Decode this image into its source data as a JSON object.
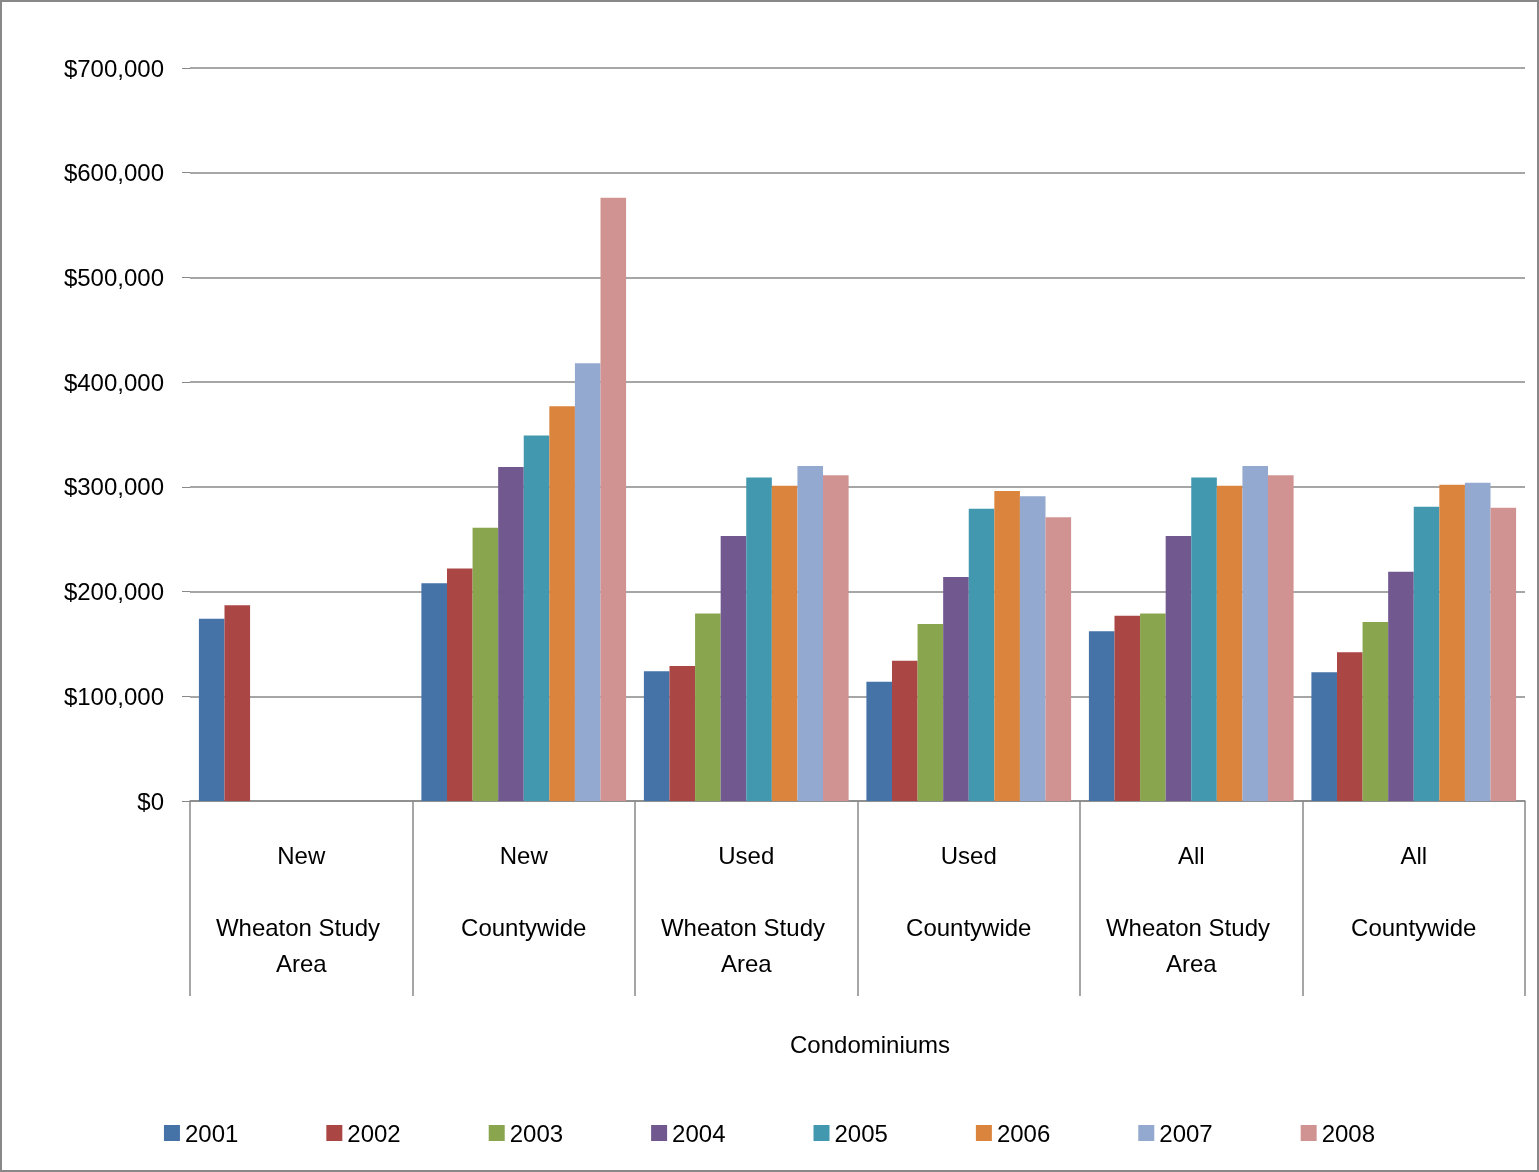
{
  "chart_data": {
    "type": "bar",
    "annotations": [
      "Condominiums"
    ],
    "categories": [
      "New\n\nWheaton Study Area",
      "New\n\nCountywide",
      "Used\n\nWheaton Study Area",
      "Used\n\nCountywide",
      "All\n\nWheaton Study Area",
      "All\n\nCountywide"
    ],
    "series": [
      {
        "name": "2001",
        "color": "#4572a7",
        "values": [
          174000,
          208000,
          124000,
          114000,
          162000,
          123000
        ]
      },
      {
        "name": "2002",
        "color": "#aa4643",
        "values": [
          187000,
          222000,
          129000,
          134000,
          177000,
          142000
        ]
      },
      {
        "name": "2003",
        "color": "#89a54e",
        "values": [
          null,
          261000,
          179000,
          169000,
          179000,
          171000
        ]
      },
      {
        "name": "2004",
        "color": "#71588f",
        "values": [
          null,
          319000,
          253000,
          214000,
          253000,
          219000
        ]
      },
      {
        "name": "2005",
        "color": "#4198af",
        "values": [
          null,
          349000,
          309000,
          279000,
          309000,
          281000
        ]
      },
      {
        "name": "2006",
        "color": "#db843d",
        "values": [
          null,
          377000,
          301000,
          296000,
          301000,
          302000
        ]
      },
      {
        "name": "2007",
        "color": "#93a9cf",
        "values": [
          null,
          418000,
          320000,
          291000,
          320000,
          304000
        ]
      },
      {
        "name": "2008",
        "color": "#d19392",
        "values": [
          null,
          576000,
          311000,
          271000,
          311000,
          280000
        ]
      }
    ],
    "ylim": [
      0,
      700000
    ],
    "yticks": [
      {
        "value": 0,
        "label": "$0"
      },
      {
        "value": 100000,
        "label": "$100,000"
      },
      {
        "value": 200000,
        "label": "$200,000"
      },
      {
        "value": 300000,
        "label": "$300,000"
      },
      {
        "value": 400000,
        "label": "$400,000"
      },
      {
        "value": 500000,
        "label": "$500,000"
      },
      {
        "value": 600000,
        "label": "$600,000"
      },
      {
        "value": 700000,
        "label": "$700,000"
      }
    ],
    "grid": "y",
    "legend": "bottom"
  }
}
